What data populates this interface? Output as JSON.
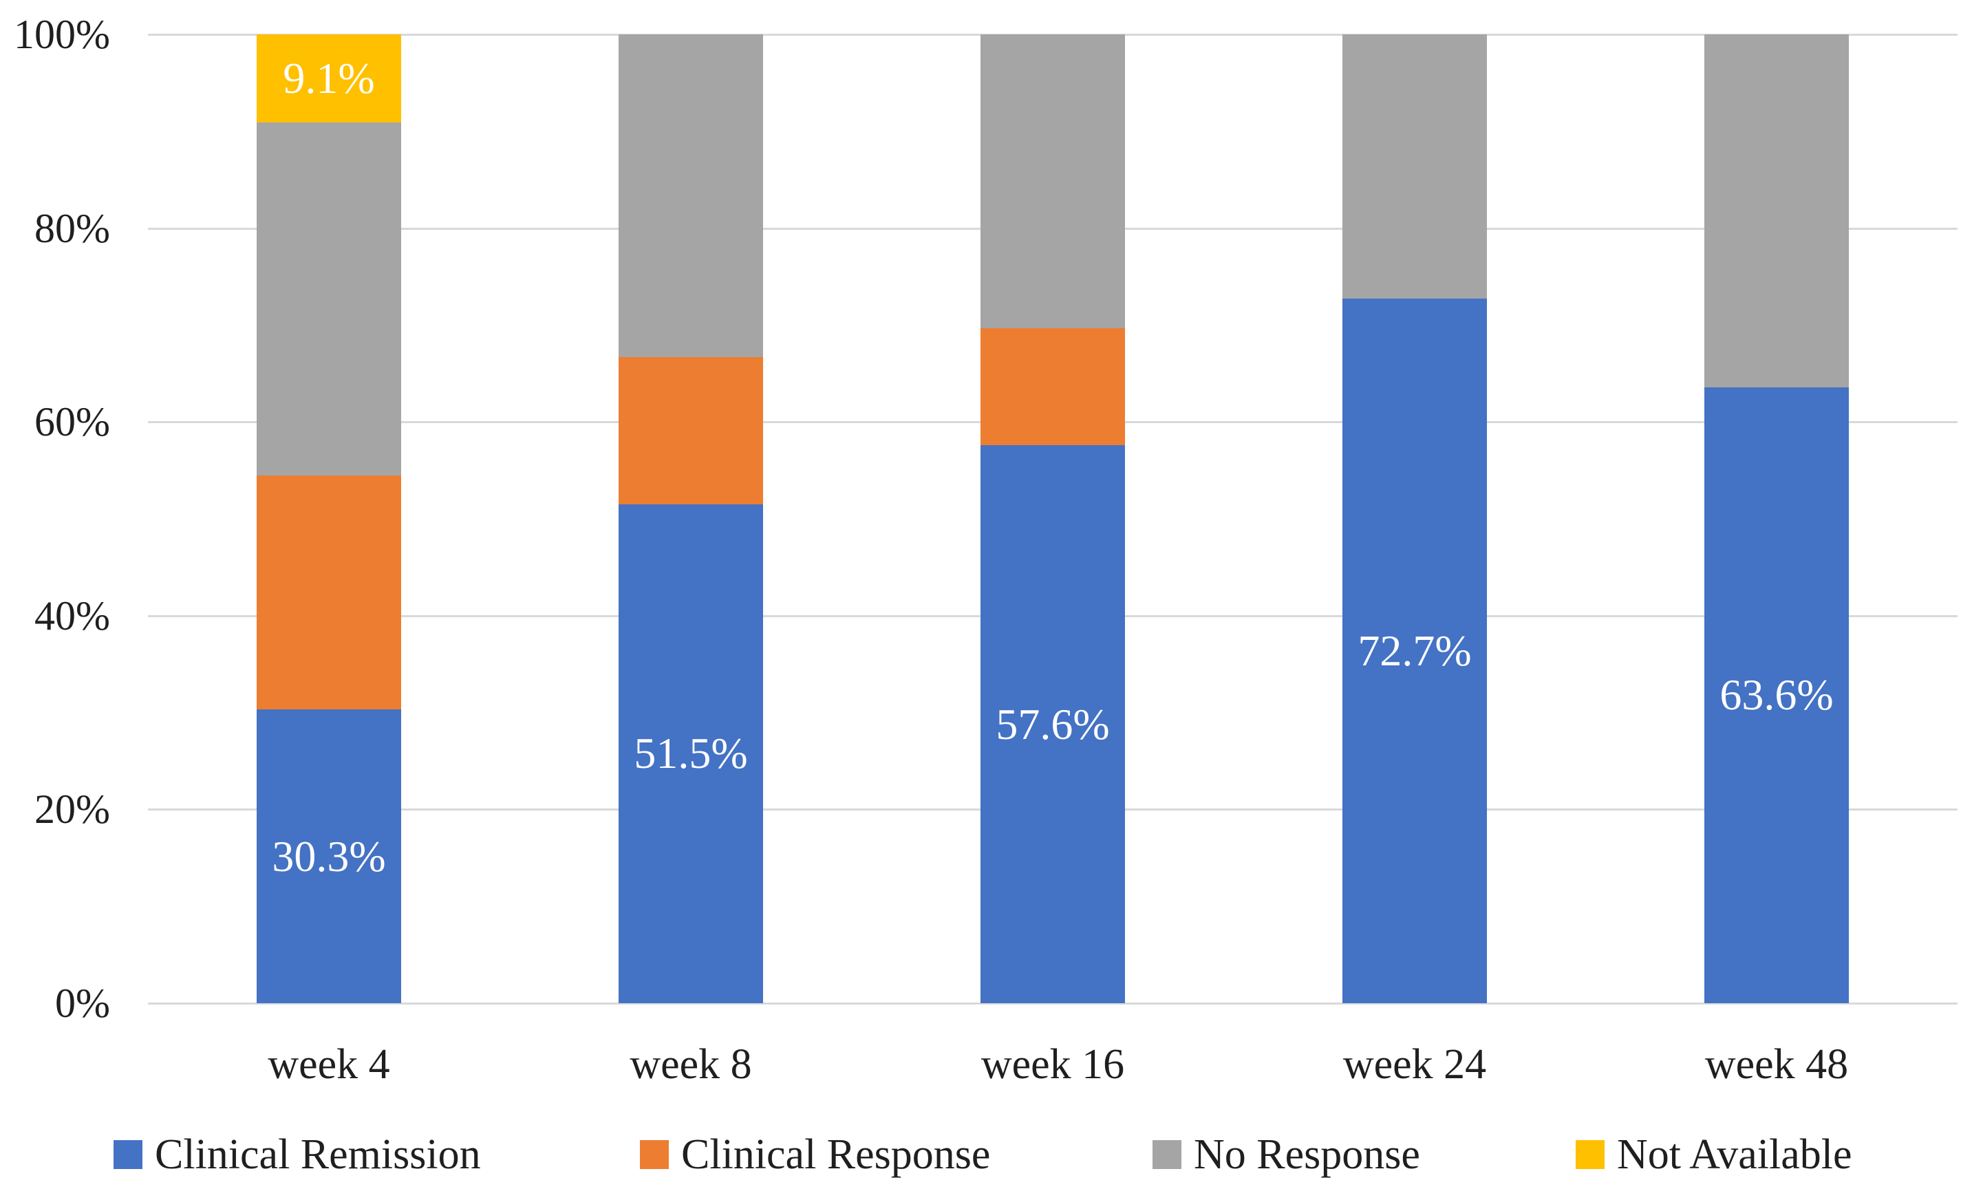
{
  "chart_data": {
    "type": "bar",
    "subtype": "stacked-100-percent",
    "orientation": "vertical",
    "categories": [
      "week 4",
      "week 8",
      "week 16",
      "week 24",
      "week 48"
    ],
    "series": [
      {
        "name": "Clinical Remission",
        "color": "#4472C4",
        "values": [
          30.3,
          51.5,
          57.6,
          72.7,
          63.6
        ],
        "labels": [
          "30.3%",
          "51.5%",
          "57.6%",
          "72.7%",
          "63.6%"
        ]
      },
      {
        "name": "Clinical Response",
        "color": "#ED7D31",
        "values": [
          24.2,
          15.2,
          12.1,
          0,
          0
        ],
        "labels": [
          "",
          "",
          "",
          "",
          ""
        ]
      },
      {
        "name": "No Response",
        "color": "#A5A5A5",
        "values": [
          36.4,
          33.3,
          30.3,
          27.3,
          36.4
        ],
        "labels": [
          "",
          "",
          "",
          "",
          ""
        ]
      },
      {
        "name": "Not Available",
        "color": "#FFC000",
        "values": [
          9.1,
          0,
          0,
          0,
          0
        ],
        "labels": [
          "9.1%",
          "",
          "",
          "",
          ""
        ]
      }
    ],
    "y_ticks": [
      {
        "value": 0,
        "label": "0%"
      },
      {
        "value": 20,
        "label": "20%"
      },
      {
        "value": 40,
        "label": "40%"
      },
      {
        "value": 60,
        "label": "60%"
      },
      {
        "value": 80,
        "label": "80%"
      },
      {
        "value": 100,
        "label": "100%"
      }
    ],
    "ylim": [
      0,
      100
    ],
    "grid": true,
    "gridline_color": "#d9d9d9",
    "data_label_color": "#ffffff",
    "legend_position": "bottom"
  }
}
